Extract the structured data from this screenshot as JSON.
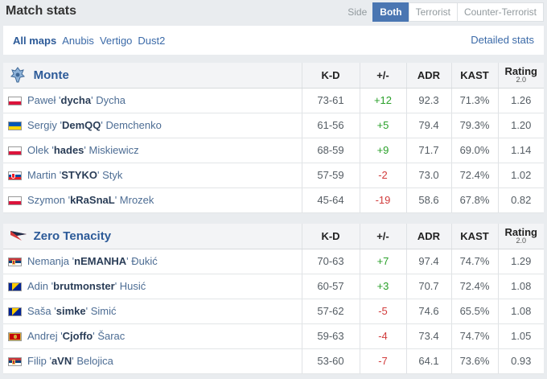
{
  "header": {
    "title": "Match stats",
    "side_label": "Side",
    "tabs": [
      "Both",
      "Terrorist",
      "Counter-Terrorist"
    ],
    "active_tab": "Both"
  },
  "filters": {
    "maps": [
      "All maps",
      "Anubis",
      "Vertigo",
      "Dust2"
    ],
    "active_map": "All maps",
    "detailed_link": "Detailed stats"
  },
  "columns": {
    "kd": "K-D",
    "pm": "+/-",
    "adr": "ADR",
    "kast": "KAST",
    "rating": "Rating",
    "rating_version": "2.0"
  },
  "colors": {
    "accent": "#4a76b2",
    "positive": "#29a029",
    "negative": "#d13b3b"
  },
  "teams": [
    {
      "name": "Monte",
      "logo_icon": "monte-logo-icon",
      "players": [
        {
          "flag": "PL",
          "first": "Paweł",
          "nick": "dycha",
          "last": "Dycha",
          "kd": "73-61",
          "pm": "+12",
          "adr": "92.3",
          "kast": "71.3%",
          "rating": "1.26"
        },
        {
          "flag": "UA",
          "first": "Sergiy",
          "nick": "DemQQ",
          "last": "Demchenko",
          "kd": "61-56",
          "pm": "+5",
          "adr": "79.4",
          "kast": "79.3%",
          "rating": "1.20"
        },
        {
          "flag": "PL",
          "first": "Olek",
          "nick": "hades",
          "last": "Miskiewicz",
          "kd": "68-59",
          "pm": "+9",
          "adr": "71.7",
          "kast": "69.0%",
          "rating": "1.14"
        },
        {
          "flag": "SK",
          "first": "Martin",
          "nick": "STYKO",
          "last": "Styk",
          "kd": "57-59",
          "pm": "-2",
          "adr": "73.0",
          "kast": "72.4%",
          "rating": "1.02"
        },
        {
          "flag": "PL",
          "first": "Szymon",
          "nick": "kRaSnaL",
          "last": "Mrozek",
          "kd": "45-64",
          "pm": "-19",
          "adr": "58.6",
          "kast": "67.8%",
          "rating": "0.82"
        }
      ]
    },
    {
      "name": "Zero Tenacity",
      "logo_icon": "zero-tenacity-logo-icon",
      "players": [
        {
          "flag": "RS",
          "first": "Nemanja",
          "nick": "nEMANHA",
          "last": "Đukić",
          "kd": "70-63",
          "pm": "+7",
          "adr": "97.4",
          "kast": "74.7%",
          "rating": "1.29"
        },
        {
          "flag": "BA",
          "first": "Adin",
          "nick": "brutmonster",
          "last": "Husić",
          "kd": "60-57",
          "pm": "+3",
          "adr": "70.7",
          "kast": "72.4%",
          "rating": "1.08"
        },
        {
          "flag": "BA",
          "first": "Saša",
          "nick": "simke",
          "last": "Simić",
          "kd": "57-62",
          "pm": "-5",
          "adr": "74.6",
          "kast": "65.5%",
          "rating": "1.08"
        },
        {
          "flag": "ME",
          "first": "Andrej",
          "nick": "Cjoffo",
          "last": "Šarac",
          "kd": "59-63",
          "pm": "-4",
          "adr": "73.4",
          "kast": "74.7%",
          "rating": "1.05"
        },
        {
          "flag": "RS",
          "first": "Filip",
          "nick": "aVN",
          "last": "Belojica",
          "kd": "53-60",
          "pm": "-7",
          "adr": "64.1",
          "kast": "73.6%",
          "rating": "0.93"
        }
      ]
    }
  ]
}
